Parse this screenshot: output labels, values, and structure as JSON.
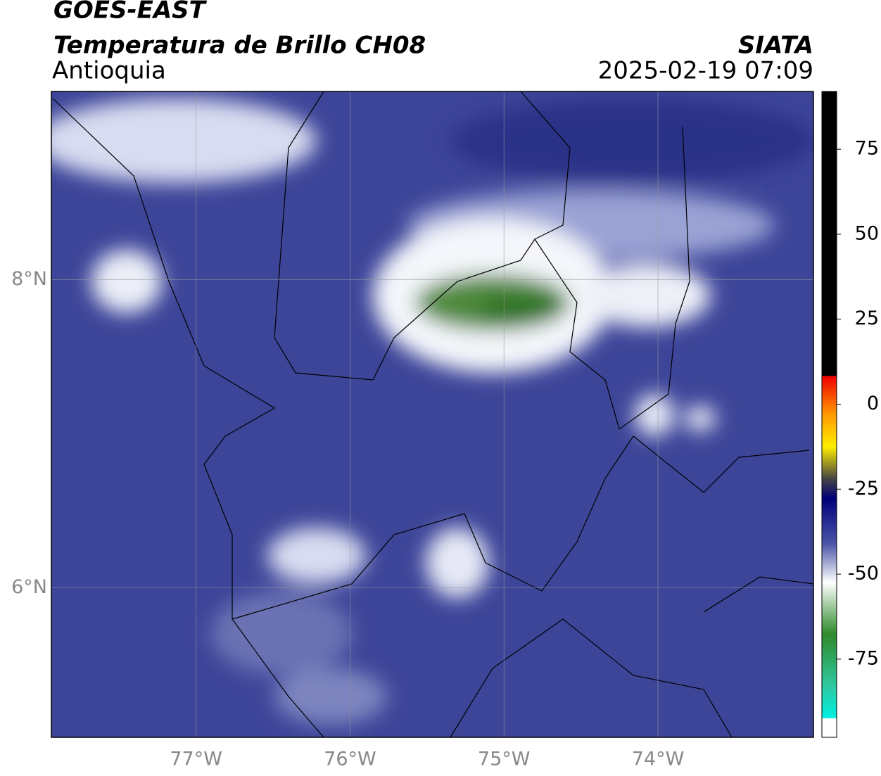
{
  "header": {
    "source": "GOES-EAST",
    "title": "Temperatura de Brillo CH08",
    "region": "Antioquia",
    "agency": "SIATA",
    "datetime": "2025-02-19 07:09"
  },
  "map": {
    "xlim": [
      -77.94,
      -72.99
    ],
    "ylim": [
      5.03,
      9.22
    ],
    "xticks": [
      {
        "value": -77,
        "label": "77°W"
      },
      {
        "value": -76,
        "label": "76°W"
      },
      {
        "value": -75,
        "label": "75°W"
      },
      {
        "value": -74,
        "label": "74°W"
      }
    ],
    "yticks": [
      {
        "value": 8,
        "label": "8°N"
      },
      {
        "value": 6,
        "label": "6°N"
      }
    ],
    "grid": true
  },
  "colorbar": {
    "lim": [
      -98,
      92
    ],
    "ticks": [
      75,
      50,
      25,
      0,
      -25,
      -50,
      -75
    ]
  }
}
